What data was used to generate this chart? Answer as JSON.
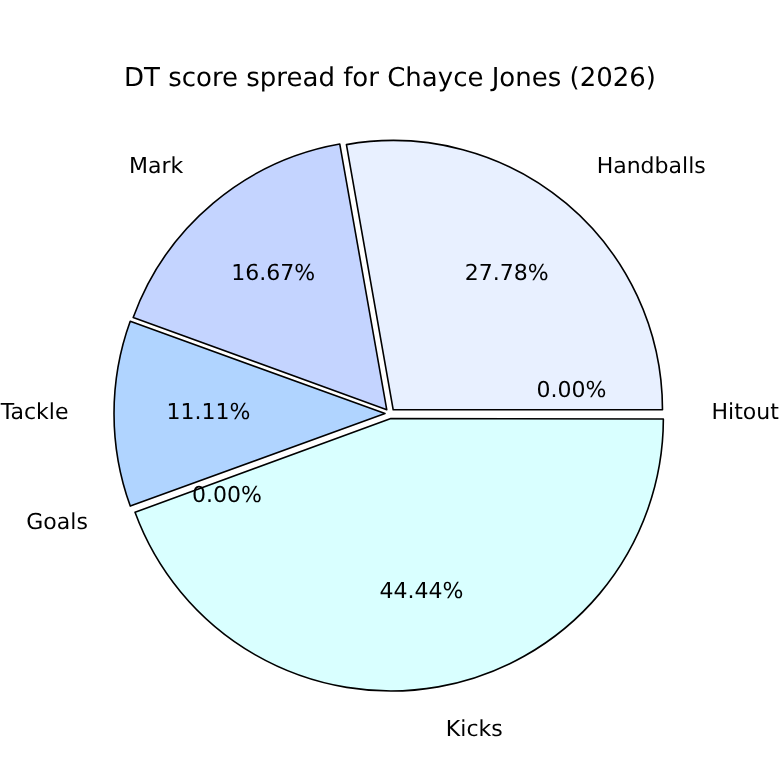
{
  "chart_data": {
    "type": "pie",
    "title": "DT score spread for Chayce Jones (2026)",
    "categories": [
      "Kicks",
      "Goals",
      "Tackle",
      "Mark",
      "Handballs",
      "Hitout"
    ],
    "values": [
      44.44,
      0,
      11.11,
      16.67,
      27.78,
      0
    ],
    "colors": [
      "#d9ffff",
      "#aaccff",
      "#b0d4ff",
      "#c4d4ff",
      "#e8f0ff",
      "#eef4ff"
    ],
    "value_labels": [
      "44.44%",
      "0.00%",
      "11.11%",
      "16.67%",
      "27.78%",
      "0.00%"
    ],
    "legend": false
  }
}
